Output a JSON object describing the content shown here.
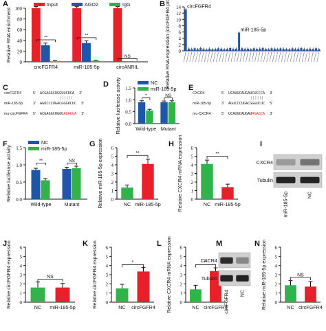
{
  "colors": {
    "red": "#e8202a",
    "blue": "#1f57a8",
    "green": "#2fb34a",
    "black": "#111111",
    "gray": "#777777"
  },
  "panels": [
    {
      "id": "A",
      "letter": "A",
      "type": "bar-grouped",
      "ylabel": "Relative RNA enrichment",
      "yticks": [
        "0",
        "20",
        "40",
        "60",
        "80",
        "100"
      ],
      "ylim": [
        0,
        100
      ],
      "legend": [
        "Input",
        "AGO2",
        "IgG"
      ],
      "categories": [
        "circFGFR4",
        "miR-185-5p",
        "circANRIL"
      ],
      "series": [
        {
          "name": "Input",
          "color": "red",
          "values": [
            100,
            100,
            100
          ],
          "errors": [
            3,
            3,
            3
          ]
        },
        {
          "name": "AGO2",
          "color": "blue",
          "values": [
            31,
            35,
            0
          ],
          "errors": [
            4,
            4,
            0
          ]
        },
        {
          "name": "IgG",
          "color": "green",
          "values": [
            1,
            2,
            0
          ],
          "errors": [
            1,
            1,
            0
          ]
        }
      ],
      "sig": [
        {
          "label": "**",
          "cat": 0,
          "y": 41
        },
        {
          "label": "**",
          "cat": 1,
          "y": 45
        },
        {
          "label": "NS",
          "cat": 2,
          "y": 6
        }
      ]
    },
    {
      "id": "B",
      "letter": "B",
      "type": "bar-many",
      "ylabel": "Relative RNA expression (circFGFR4 probe/NC probe)",
      "yticks": [
        "0",
        "2",
        "4",
        "6",
        "8",
        "10",
        "12",
        "14"
      ],
      "ylim": [
        0,
        14
      ],
      "values": [
        13.2,
        0.7,
        0.6,
        0.8,
        0.5,
        0.9,
        0.6,
        0.4,
        0.7,
        0.5,
        0.6,
        0.8,
        0.7,
        0.5,
        0.6,
        0.9,
        0.6,
        0.7,
        5.8,
        0.8,
        0.6,
        0.7,
        0.5,
        0.8,
        0.6,
        0.7,
        0.9,
        0.6,
        0.5,
        0.8,
        0.7,
        0.6,
        0.8,
        0.7,
        0.6,
        0.5,
        0.8,
        0.6,
        0.7,
        0.9,
        0.6,
        0.5,
        0.7,
        0.6,
        0.8,
        0.5
      ],
      "callouts": [
        {
          "label": "circFGFR4",
          "index": 0
        },
        {
          "label": "miR-185-5p",
          "index": 18
        }
      ]
    },
    {
      "id": "C",
      "letter": "C",
      "type": "sequence",
      "rows": [
        {
          "name": "circFGFR4",
          "prime5": "5'",
          "seq": "ACGAGGCUGGUUCUCA",
          "prime3": "3'"
        },
        {
          "name": "miR-185-5p",
          "prime5": "3'",
          "seq": "AGUCCCUGACGGGUCUC",
          "prime3": "5'"
        },
        {
          "name": "mu-circFGFR4",
          "prime5": "5'",
          "seq": "ACGAGGCUGGUAGAGGA",
          "prime3": "3'"
        }
      ]
    },
    {
      "id": "D",
      "letter": "D",
      "type": "bar-grouped",
      "ylabel": "Relative luciferase activity",
      "yticks": [
        "0.0",
        "0.5",
        "1.0",
        "1.5"
      ],
      "ylim": [
        0,
        1.5
      ],
      "legend": [
        "NC",
        "miR-185-5p"
      ],
      "categories": [
        "Wild-type",
        "Mutant"
      ],
      "series": [
        {
          "name": "NC",
          "color": "blue",
          "values": [
            0.9,
            0.9
          ],
          "errors": [
            0.06,
            0.05
          ]
        },
        {
          "name": "miR-185-5p",
          "color": "green",
          "values": [
            0.55,
            0.9
          ],
          "errors": [
            0.05,
            0.06
          ]
        }
      ],
      "sig": [
        {
          "label": "*",
          "cat": 0,
          "y": 1.08
        },
        {
          "label": "NS",
          "cat": 1,
          "y": 1.08
        }
      ]
    },
    {
      "id": "E",
      "letter": "E",
      "type": "sequence",
      "rows": [
        {
          "name": "CXCR4",
          "prime5": "5'",
          "seq": "UCAUGCAUGAUCUCCCA",
          "prime3": "3'"
        },
        {
          "name": "miR-185-5p",
          "prime5": "3'",
          "seq": "AGUCCCUGACGGGUCUC",
          "prime3": "5'"
        },
        {
          "name": "mu-CXCR4",
          "prime5": "5'",
          "seq": "UCAUGCAUGAUAGAGCA",
          "prime3": "3'"
        }
      ]
    },
    {
      "id": "F",
      "letter": "F",
      "type": "bar-grouped",
      "ylabel": "Relative luciferase activity",
      "yticks": [
        "0.0",
        "0.5",
        "1.0",
        "1.5"
      ],
      "ylim": [
        0,
        1.5
      ],
      "legend": [
        "NC",
        "miR-185-5p"
      ],
      "categories": [
        "Wild-type",
        "Mutant"
      ],
      "series": [
        {
          "name": "NC",
          "color": "blue",
          "values": [
            0.85,
            0.88
          ],
          "errors": [
            0.05,
            0.05
          ]
        },
        {
          "name": "miR-185-5p",
          "color": "green",
          "values": [
            0.55,
            0.9
          ],
          "errors": [
            0.05,
            0.06
          ]
        }
      ],
      "sig": [
        {
          "label": "**",
          "cat": 0,
          "y": 1.05
        },
        {
          "label": "NS",
          "cat": 1,
          "y": 1.05
        }
      ]
    },
    {
      "id": "G",
      "letter": "G",
      "type": "bar-simple",
      "ylabel": "Relative miR-185-5p expression",
      "yticks": [
        "0",
        "1",
        "2",
        "3",
        "4",
        "5",
        "6"
      ],
      "ylim": [
        0,
        6
      ],
      "categories": [
        "NC",
        "miR-185-5p"
      ],
      "values": [
        1.35,
        4.1
      ],
      "errors": [
        0.3,
        0.55
      ],
      "colors": [
        "green",
        "red"
      ],
      "sig": [
        {
          "label": "**",
          "y": 5.1
        }
      ]
    },
    {
      "id": "H",
      "letter": "H",
      "type": "bar-simple",
      "ylabel": "Relative CXCR4 mRNA expression",
      "yticks": [
        "0",
        "1",
        "2",
        "3",
        "4",
        "5",
        "6"
      ],
      "ylim": [
        0,
        6
      ],
      "categories": [
        "NC",
        "miR-185-5p"
      ],
      "values": [
        4.1,
        1.4
      ],
      "errors": [
        0.45,
        0.35
      ],
      "colors": [
        "green",
        "red"
      ],
      "sig": [
        {
          "label": "**",
          "y": 5.0
        }
      ]
    },
    {
      "id": "I",
      "letter": "I",
      "type": "blot",
      "bands": [
        "CXCR4",
        "Tubulin"
      ],
      "lanes": [
        "miR-185-5p",
        "NC"
      ],
      "intensity": [
        [
          0.35,
          0.55
        ],
        [
          0.95,
          0.95
        ]
      ]
    },
    {
      "id": "J",
      "letter": "J",
      "type": "bar-simple",
      "ylabel": "Relative circFGFR4 expression",
      "yticks": [
        "0",
        "1",
        "2",
        "3",
        "4",
        "5",
        "6"
      ],
      "ylim": [
        0,
        6
      ],
      "categories": [
        "NC",
        "miR-185-5p"
      ],
      "values": [
        1.6,
        1.6
      ],
      "errors": [
        0.6,
        0.45
      ],
      "colors": [
        "green",
        "red"
      ],
      "sig": [
        {
          "label": "NS",
          "y": 2.5
        }
      ]
    },
    {
      "id": "K",
      "letter": "K",
      "type": "bar-simple",
      "ylabel": "Relative circFGFR4 expression",
      "yticks": [
        "0",
        "1",
        "2",
        "3",
        "4",
        "5",
        "6"
      ],
      "ylim": [
        0,
        6
      ],
      "categories": [
        "NC",
        "circFGFR4"
      ],
      "values": [
        1.5,
        3.35
      ],
      "errors": [
        0.45,
        0.45
      ],
      "colors": [
        "green",
        "red"
      ],
      "sig": [
        {
          "label": "*",
          "y": 4.1
        }
      ]
    },
    {
      "id": "L",
      "letter": "L",
      "type": "bar-simple",
      "ylabel": "Relative CXCR4 mRNA expression",
      "yticks": [
        "0",
        "1",
        "2",
        "3",
        "4",
        "5",
        "6"
      ],
      "ylim": [
        0,
        6
      ],
      "categories": [
        "NC",
        "circFGFR4"
      ],
      "values": [
        1.4,
        3.4
      ],
      "errors": [
        0.45,
        0.35
      ],
      "colors": [
        "green",
        "red"
      ],
      "sig": [
        {
          "label": "**",
          "y": 4.1
        }
      ]
    },
    {
      "id": "M",
      "letter": "M",
      "type": "blot",
      "bands": [
        "CXCR4",
        "Tubulin"
      ],
      "lanes": [
        "circFGFR4",
        "NC"
      ],
      "intensity": [
        [
          0.9,
          0.45
        ],
        [
          0.95,
          0.95
        ]
      ]
    },
    {
      "id": "N",
      "letter": "N",
      "type": "bar-simple",
      "ylabel": "Relative miR-185-5p expression",
      "yticks": [
        "0",
        "1",
        "2",
        "3",
        "4",
        "5",
        "6"
      ],
      "ylim": [
        0,
        6
      ],
      "categories": [
        "NC",
        "circFGFR4"
      ],
      "values": [
        1.85,
        1.7
      ],
      "errors": [
        0.5,
        0.55
      ],
      "colors": [
        "green",
        "red"
      ],
      "sig": [
        {
          "label": "NS",
          "y": 2.7
        }
      ]
    }
  ]
}
